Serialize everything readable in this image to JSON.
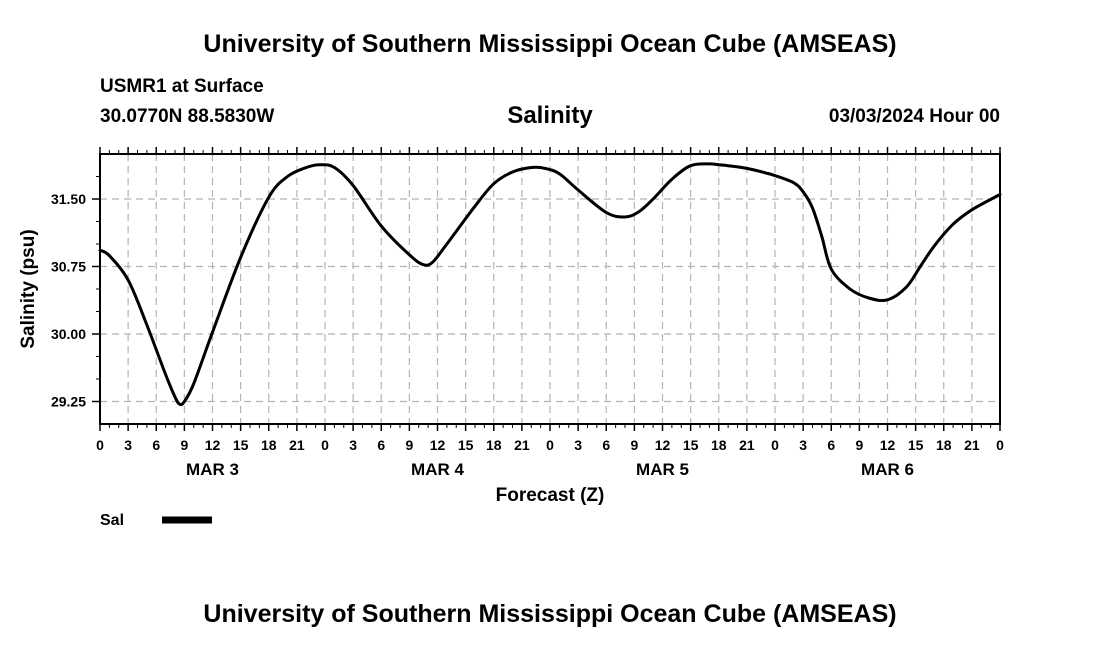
{
  "header": {
    "title": "University of Southern Mississippi Ocean Cube (AMSEAS)",
    "station": "USMR1 at Surface",
    "coords": "30.0770N  88.5830W",
    "datetime": "03/03/2024 Hour 00"
  },
  "footer": {
    "title": "University of Southern Mississippi Ocean Cube (AMSEAS)"
  },
  "colors": {
    "line": "#000000",
    "grid": "#b4b4b4"
  },
  "chart_data": {
    "type": "line",
    "title": "Salinity",
    "xlabel": "Forecast (Z)",
    "ylabel": "Salinity (psu)",
    "x_unit": "hours from 03/03/2024 00Z",
    "xlim": [
      0,
      96
    ],
    "ylim": [
      29.0,
      32.0
    ],
    "yticks": [
      "31.50",
      "30.75",
      "30.00",
      "29.25"
    ],
    "ytick_values": [
      31.5,
      30.75,
      30.0,
      29.25
    ],
    "xtick_labels": [
      "0",
      "3",
      "6",
      "9",
      "12",
      "15",
      "18",
      "21",
      "0",
      "3",
      "6",
      "9",
      "12",
      "15",
      "18",
      "21",
      "0",
      "3",
      "6",
      "9",
      "12",
      "15",
      "18",
      "21",
      "0",
      "3",
      "6",
      "9",
      "12",
      "15",
      "18",
      "21",
      "0"
    ],
    "day_labels": [
      {
        "label": "MAR 3",
        "hour": 12
      },
      {
        "label": "MAR 4",
        "hour": 36
      },
      {
        "label": "MAR 5",
        "hour": 60
      },
      {
        "label": "MAR 6",
        "hour": 84
      }
    ],
    "grid": true,
    "legend": {
      "position": "bottom-left",
      "entries": [
        "Sal"
      ]
    },
    "series": [
      {
        "name": "Sal",
        "x": [
          0,
          1,
          3,
          5,
          7,
          8,
          8.5,
          9,
          10,
          12,
          15,
          18,
          20,
          22,
          23.5,
          25,
          27,
          30,
          33,
          34.5,
          35.5,
          37,
          40,
          42,
          44,
          46,
          47.5,
          49,
          51,
          54,
          56,
          57.5,
          59,
          61,
          63,
          65,
          66,
          67,
          69,
          71,
          72,
          74,
          75,
          76,
          77,
          78,
          80,
          82,
          84,
          86,
          87.5,
          89,
          91,
          93,
          96
        ],
        "values": [
          30.93,
          30.87,
          30.6,
          30.1,
          29.55,
          29.3,
          29.22,
          29.25,
          29.45,
          30.02,
          30.85,
          31.52,
          31.75,
          31.85,
          31.88,
          31.85,
          31.65,
          31.2,
          30.88,
          30.77,
          30.8,
          31.0,
          31.42,
          31.67,
          31.8,
          31.85,
          31.84,
          31.78,
          31.6,
          31.35,
          31.3,
          31.36,
          31.5,
          31.72,
          31.87,
          31.89,
          31.88,
          31.87,
          31.84,
          31.79,
          31.76,
          31.68,
          31.58,
          31.4,
          31.08,
          30.72,
          30.5,
          30.4,
          30.38,
          30.52,
          30.75,
          30.98,
          31.22,
          31.38,
          31.55
        ]
      }
    ]
  }
}
